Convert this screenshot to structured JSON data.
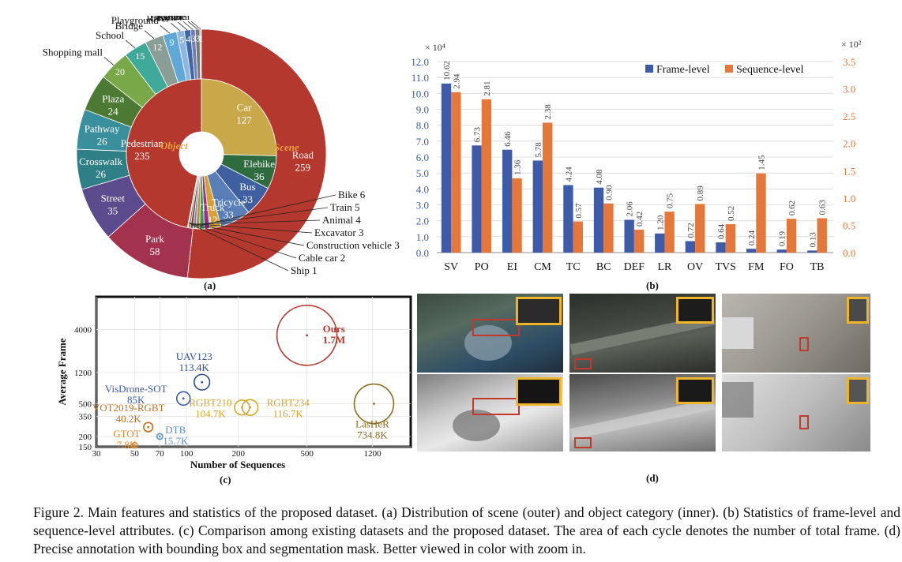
{
  "figure_caption": "Figure 2. Main features and statistics of the proposed dataset. (a) Distribution of scene (outer) and object category (inner). (b) Statistics of frame-level and sequence-level attributes. (c) Comparison among existing datasets and the proposed dataset. The area of each cycle denotes the number of total frame. (d) Precise annotation with bounding box and segmentation mask. Better viewed in color with zoom in.",
  "panel_labels": {
    "a": "(a)",
    "b": "(b)",
    "c": "(c)",
    "d": "(d)"
  },
  "chart_data": [
    {
      "type": "pie",
      "panel": "a",
      "center_labels": {
        "inner": "Object",
        "outer": "Scene"
      },
      "outer_ring": [
        {
          "label": "Road",
          "value": 259,
          "color": "#b5382f",
          "inside": true
        },
        {
          "label": "Park",
          "value": 58,
          "color": "#a3324f",
          "inside": true
        },
        {
          "label": "Street",
          "value": 35,
          "color": "#5b4a8c",
          "inside": true
        },
        {
          "label": "Crosswalk",
          "value": 26,
          "color": "#2f7f86",
          "inside": true
        },
        {
          "label": "Pathway",
          "value": 26,
          "color": "#3a8f9c",
          "inside": true
        },
        {
          "label": "Plaza",
          "value": 24,
          "color": "#4c7a34",
          "inside": true
        },
        {
          "label": "Shopping mall",
          "value": 20,
          "color": "#78a847",
          "inside": false
        },
        {
          "label": "School",
          "value": 15,
          "color": "#3fa99a",
          "inside": false
        },
        {
          "label": "Bridge",
          "value": 12,
          "color": "#8a9e96",
          "inside": false
        },
        {
          "label": "Playground",
          "value": 9,
          "color": "#5fa8d8",
          "inside": false
        },
        {
          "label": "River",
          "value": 5,
          "color": "#8fb6e0",
          "inside": false
        },
        {
          "label": "Beach",
          "value": 4,
          "color": "#3f66a8",
          "inside": false
        },
        {
          "label": "Court",
          "value": 3,
          "color": "#6f7fb5",
          "inside": false
        },
        {
          "label": "Seaside",
          "value": 3,
          "color": "#7a7a7a",
          "inside": false
        },
        {
          "label": "Sea",
          "value": 1,
          "color": "#b9b9b9",
          "inside": false
        }
      ],
      "inner_ring": [
        {
          "label": "Car",
          "value": 127,
          "color": "#c9a84a",
          "inside": true
        },
        {
          "label": "Elebike",
          "value": 36,
          "color": "#2e6b3f",
          "inside": true
        },
        {
          "label": "Bus",
          "value": 33,
          "color": "#3f5fa0",
          "inside": true
        },
        {
          "label": "Tricycle",
          "value": 33,
          "color": "#5a7fb8",
          "inside": true
        },
        {
          "label": "Truck",
          "value": 12,
          "color": "#d6a235",
          "inside": true
        },
        {
          "label": "Bike",
          "value": 6,
          "color": "#9b2f8f",
          "inside": false
        },
        {
          "label": "Train",
          "value": 5,
          "color": "#3d9a55",
          "inside": false
        },
        {
          "label": "Animal",
          "value": 4,
          "color": "#c98a2e",
          "inside": false
        },
        {
          "label": "Excavator",
          "value": 3,
          "color": "#5b8fc9",
          "inside": false
        },
        {
          "label": "Construction vehicle",
          "value": 3,
          "color": "#8c3f2a",
          "inside": false
        },
        {
          "label": "Cable car",
          "value": 2,
          "color": "#6a6a6a",
          "inside": false
        },
        {
          "label": "Ship",
          "value": 1,
          "color": "#b0b030",
          "inside": false
        },
        {
          "label": "Pedestrian",
          "value": 235,
          "color": "#b5382f",
          "inside": true
        }
      ]
    },
    {
      "type": "bar",
      "panel": "b",
      "categories": [
        "SV",
        "PO",
        "EI",
        "CM",
        "TC",
        "BC",
        "DEF",
        "LR",
        "OV",
        "TVS",
        "FM",
        "FO",
        "TB"
      ],
      "series": [
        {
          "name": "Frame-level",
          "color": "#3d5ba9",
          "axis": "left",
          "values": [
            10.62,
            6.73,
            6.46,
            5.78,
            4.24,
            4.08,
            2.06,
            1.2,
            0.72,
            0.64,
            0.24,
            0.19,
            0.13
          ],
          "labels": [
            "10.62",
            "6.73",
            "6.46",
            "5.78",
            "4.24",
            "4.08",
            "2.06",
            "1.20",
            "0.72",
            "0.64",
            "0.24",
            "0.19",
            "0.13"
          ]
        },
        {
          "name": "Sequence-level",
          "color": "#e6773a",
          "axis": "right",
          "values": [
            2.94,
            2.81,
            1.36,
            2.38,
            0.57,
            0.9,
            0.42,
            0.75,
            0.89,
            0.52,
            1.45,
            0.62,
            0.63
          ],
          "labels": [
            "2.94",
            "2.81",
            "1.36",
            "2.38",
            "0.57",
            "0.90",
            "0.42",
            "0.75",
            "0.89",
            "0.52",
            "1.45",
            "0.62",
            "0.63"
          ]
        }
      ],
      "left_axis": {
        "ticks": [
          "0.0",
          "1.0",
          "2.0",
          "3.0",
          "4.0",
          "5.0",
          "6.0",
          "7.0",
          "8.0",
          "9.0",
          "10.0",
          "11.0",
          "12.0"
        ],
        "max": 12,
        "multiplier": "× 10⁴",
        "color": "#3d5ba9"
      },
      "right_axis": {
        "ticks": [
          "0.0",
          "0.5",
          "1.0",
          "1.5",
          "2.0",
          "2.5",
          "3.0",
          "3.5"
        ],
        "max": 3.5,
        "multiplier": "× 10²",
        "color": "#e6773a"
      },
      "legend_position": "top-right",
      "grid": true
    },
    {
      "type": "scatter",
      "panel": "c",
      "xlabel": "Number of Sequences",
      "ylabel": "Average Frame",
      "x_scale": "log",
      "y_scale": "log",
      "xlim": [
        30,
        2000
      ],
      "ylim": [
        150,
        10000
      ],
      "x_ticks": [
        30,
        50,
        70,
        100,
        200,
        500,
        1200
      ],
      "y_ticks": [
        150,
        200,
        350,
        500,
        1200,
        4000
      ],
      "points": [
        {
          "name": "Ours",
          "value": "1.7M",
          "x": 500,
          "y": 3400,
          "frames": 1700000,
          "color": "#b5382f"
        },
        {
          "name": "UAV123",
          "value": "113.4K",
          "x": 123,
          "y": 915,
          "frames": 113400,
          "color": "#2f4f8f"
        },
        {
          "name": "VisDrone-SOT",
          "value": "85K",
          "x": 96,
          "y": 580,
          "frames": 85000,
          "color": "#3d5ba9"
        },
        {
          "name": "RGBT210",
          "value": "104.7K",
          "x": 210,
          "y": 450,
          "frames": 104700,
          "color": "#d4a82a"
        },
        {
          "name": "RGBT234",
          "value": "116.7K",
          "x": 234,
          "y": 450,
          "frames": 116700,
          "color": "#d4a82a"
        },
        {
          "name": "LasHeR",
          "value": "734.8K",
          "x": 1224,
          "y": 500,
          "frames": 734800,
          "color": "#8a6d1e"
        },
        {
          "name": "VOT2019-RGBT",
          "value": "40.2K",
          "x": 60,
          "y": 260,
          "frames": 40200,
          "color": "#c07020"
        },
        {
          "name": "DTB",
          "value": "15.7K",
          "x": 70,
          "y": 200,
          "frames": 15700,
          "color": "#5b8fc9"
        },
        {
          "name": "GTOT",
          "value": "7.8K",
          "x": 50,
          "y": 156,
          "frames": 7800,
          "color": "#e08a2a"
        }
      ]
    }
  ]
}
